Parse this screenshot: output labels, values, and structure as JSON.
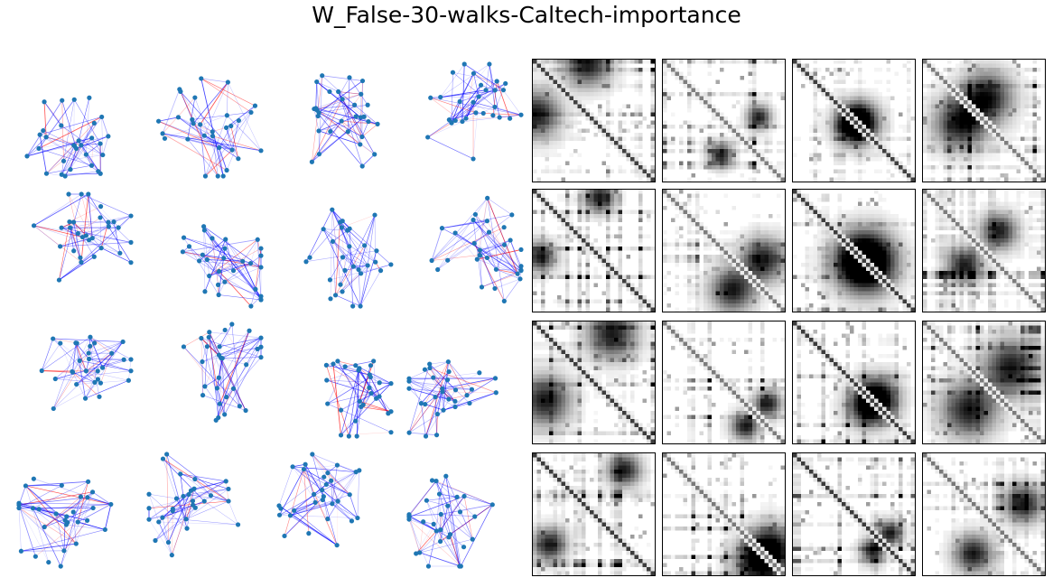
{
  "figure": {
    "title": "W_False-30-walks-Caltech-importance"
  },
  "chart_data": [
    {
      "type": "network",
      "title": "",
      "grid": "4x4",
      "nodes_per_graph": 30,
      "node_color": "#1f77b4",
      "edge_colors": {
        "positive": "#0000ff",
        "negative": "#ff0000"
      },
      "graphs": 16
    },
    {
      "type": "heatmap",
      "title": "",
      "grid": "4x4",
      "matrix_size": 30,
      "colormap": "gray_r",
      "panels": 16,
      "diagonal": "dark"
    }
  ]
}
